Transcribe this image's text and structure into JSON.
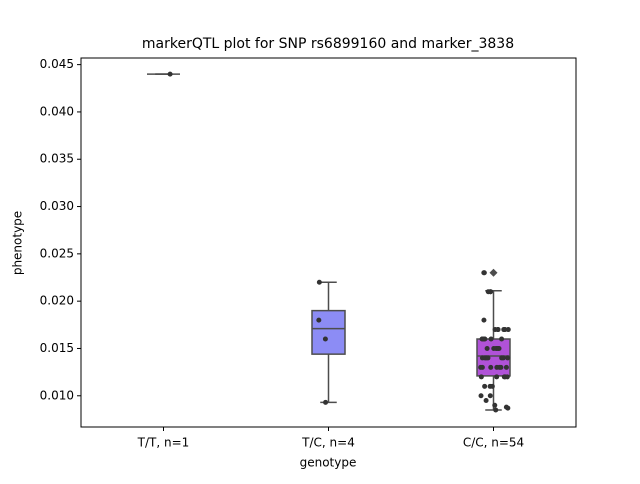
{
  "chart_data": {
    "type": "box",
    "title": "markerQTL plot for SNP rs6899160 and marker_3838",
    "x_label": "genotype",
    "y_label": "phenotype",
    "categories": [
      "T/T, n=1",
      "T/C, n=4",
      "C/C, n=54"
    ],
    "ylim": [
      0.0067,
      0.0457
    ],
    "yticks": [
      {
        "value": 0.01,
        "label": "0.010"
      },
      0.015,
      {
        "value": 0.02,
        "label": "0.020"
      },
      0.025,
      {
        "value": 0.03,
        "label": "0.030"
      },
      0.035,
      {
        "value": 0.04,
        "label": "0.040"
      },
      0.045
    ],
    "boxes": [
      {
        "low": 0.044,
        "q1": 0.044,
        "median": 0.044,
        "q3": 0.044,
        "high": 0.044,
        "color": "#8c8cf5",
        "points": [
          0.044
        ],
        "outliers": []
      },
      {
        "low": 0.0093,
        "q1": 0.0144,
        "median": 0.0171,
        "q3": 0.019,
        "high": 0.022,
        "color": "#8c8cf5",
        "points": [
          0.022,
          0.018,
          0.016,
          0.0093
        ],
        "outliers": []
      },
      {
        "low": 0.0085,
        "q1": 0.0121,
        "median": 0.0142,
        "q3": 0.016,
        "high": 0.0211,
        "color": "#b052d8",
        "points": [
          0.023,
          0.023,
          0.021,
          0.021,
          0.021,
          0.018,
          0.017,
          0.017,
          0.017,
          0.017,
          0.017,
          0.017,
          0.016,
          0.016,
          0.016,
          0.016,
          0.016,
          0.016,
          0.016,
          0.015,
          0.015,
          0.015,
          0.015,
          0.015,
          0.015,
          0.014,
          0.014,
          0.014,
          0.014,
          0.014,
          0.014,
          0.014,
          0.013,
          0.013,
          0.013,
          0.013,
          0.013,
          0.013,
          0.013,
          0.012,
          0.012,
          0.012,
          0.012,
          0.012,
          0.011,
          0.011,
          0.011,
          0.01,
          0.01,
          0.0095,
          0.009,
          0.0088,
          0.0087,
          0.0085
        ],
        "outliers": [
          0.023
        ]
      }
    ]
  }
}
